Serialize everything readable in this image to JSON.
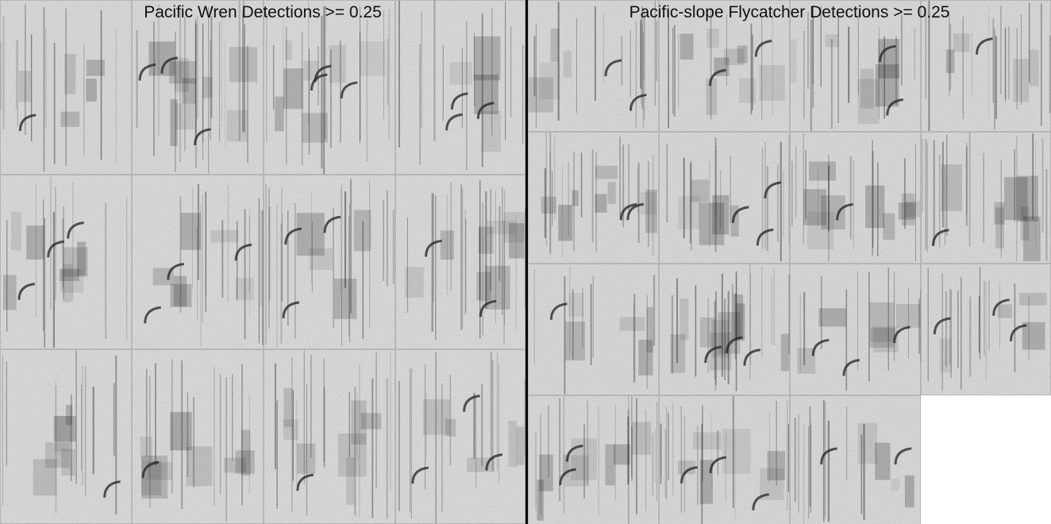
{
  "panels": [
    {
      "id": "pacific-wren",
      "title": "Pacific Wren Detections >= 0.25",
      "clips_per_row": [
        4,
        4,
        4
      ]
    },
    {
      "id": "pacific-slope-flycatcher",
      "title": "Pacific-slope Flycatcher Detections >= 0.25",
      "clips_per_row": [
        4,
        4,
        4,
        3
      ]
    }
  ],
  "colors": {
    "background": "#ffffff",
    "divider": "#000000",
    "spectrogram_base": "#e6e6e6",
    "spectrogram_mark": "#222222"
  }
}
